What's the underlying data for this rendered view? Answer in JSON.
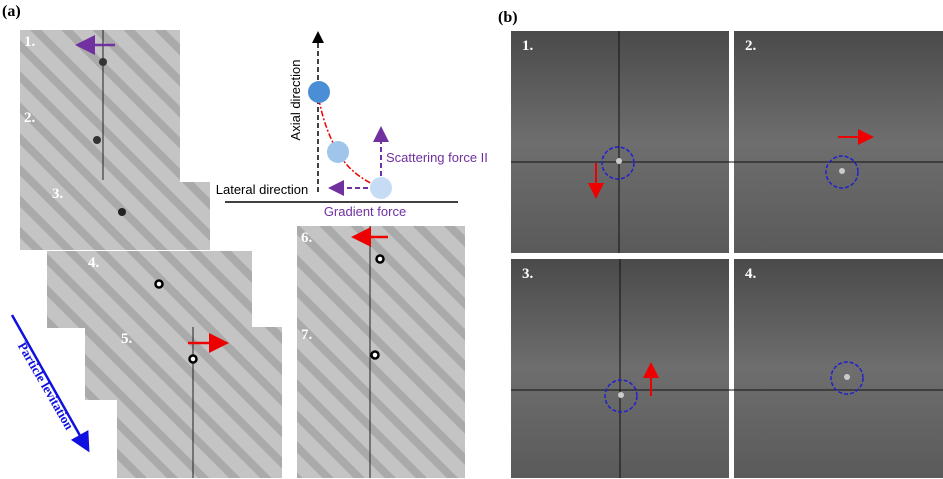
{
  "panel_a": {
    "label": "(a)",
    "frames": [
      "1.",
      "2.",
      "3.",
      "4.",
      "5.",
      "6.",
      "7."
    ],
    "diagram": {
      "axial": "Axial direction",
      "lateral": "Lateral direction",
      "gradient": "Gradient force",
      "scattering": "Scattering force II"
    },
    "arrow_label": "Particle levitation"
  },
  "panel_b": {
    "label": "(b)",
    "frames": [
      "1.",
      "2.",
      "3.",
      "4."
    ]
  }
}
